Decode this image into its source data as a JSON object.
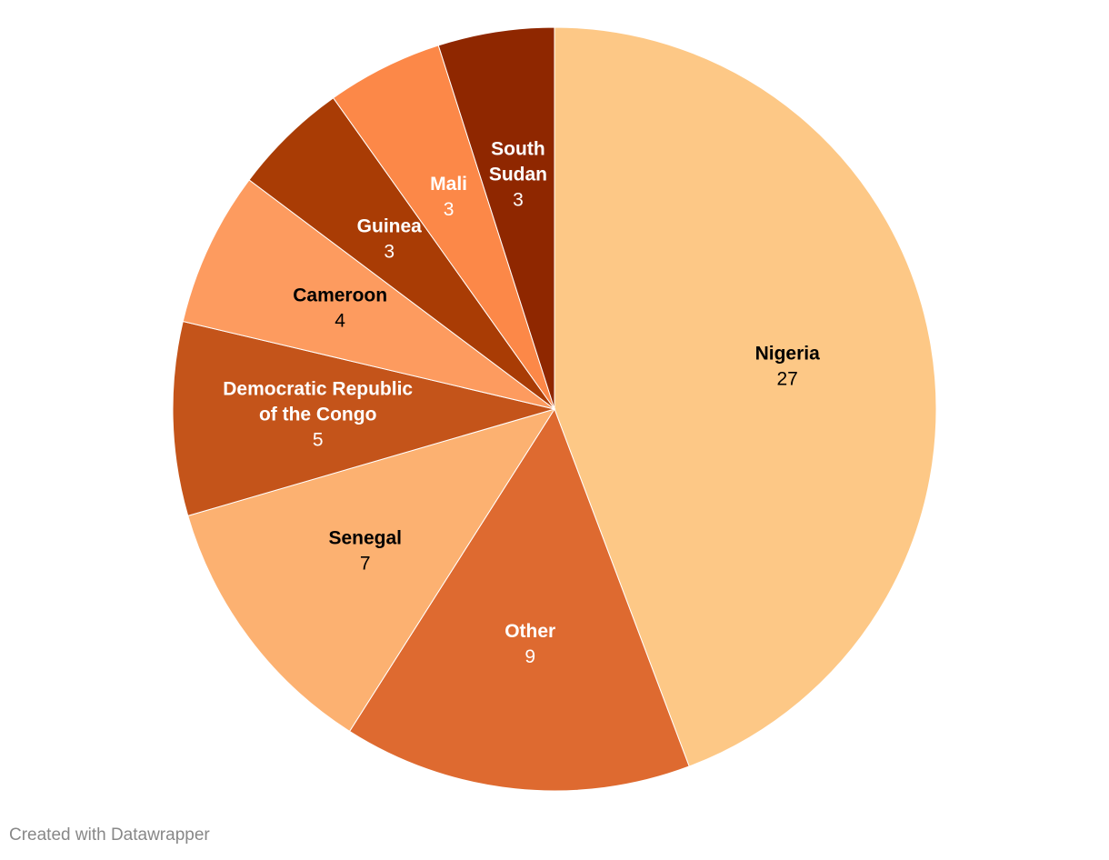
{
  "chart_data": {
    "type": "pie",
    "slices": [
      {
        "label": "Nigeria",
        "label_lines": [
          "Nigeria"
        ],
        "value": 27,
        "color": "#fdc886",
        "text_color": "#000000"
      },
      {
        "label": "Other",
        "label_lines": [
          "Other"
        ],
        "value": 9,
        "color": "#de6a30",
        "text_color": "#ffffff"
      },
      {
        "label": "Senegal",
        "label_lines": [
          "Senegal"
        ],
        "value": 7,
        "color": "#fcb171",
        "text_color": "#000000"
      },
      {
        "label": "Democratic Republic of the Congo",
        "label_lines": [
          "Democratic Republic",
          "of the Congo"
        ],
        "value": 5,
        "color": "#c4541a",
        "text_color": "#ffffff"
      },
      {
        "label": "Cameroon",
        "label_lines": [
          "Cameroon"
        ],
        "value": 4,
        "color": "#fd9b5f",
        "text_color": "#000000"
      },
      {
        "label": "Guinea",
        "label_lines": [
          "Guinea"
        ],
        "value": 3,
        "color": "#a93c05",
        "text_color": "#ffffff"
      },
      {
        "label": "Mali",
        "label_lines": [
          "Mali"
        ],
        "value": 3,
        "color": "#fc8848",
        "text_color": "#ffffff"
      },
      {
        "label": "South Sudan",
        "label_lines": [
          "South",
          "Sudan"
        ],
        "value": 3,
        "color": "#8f2700",
        "text_color": "#ffffff"
      }
    ],
    "direction": "clockwise from top"
  },
  "footer": {
    "credit": "Created with Datawrapper"
  }
}
